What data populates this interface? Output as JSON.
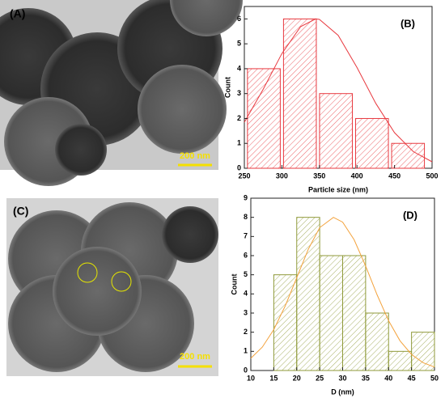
{
  "images": [
    {
      "label": "(A)",
      "scale_label": "200 nm"
    },
    {
      "label": "(C)",
      "scale_label": "200 nm"
    }
  ],
  "chart_data": [
    {
      "type": "histogram",
      "annotation": "(B)",
      "x_label": "Particle size (nm)",
      "y_label": "Count",
      "bins": [
        252,
        300,
        348,
        396,
        444,
        492
      ],
      "values": [
        4,
        6,
        3,
        2,
        1
      ],
      "color": "#e8393f",
      "xlim": [
        250,
        500
      ],
      "xticks": [
        250,
        300,
        350,
        400,
        450,
        500
      ],
      "ylim": [
        0,
        6.5
      ],
      "yticks": [
        0,
        1,
        2,
        3,
        4,
        5,
        6
      ],
      "fit": {
        "color": "#e8393f",
        "x": [
          250,
          275,
          300,
          325,
          345,
          350,
          375,
          400,
          425,
          450,
          475,
          500
        ],
        "values": [
          1.85,
          3.17,
          4.61,
          5.69,
          6,
          5.98,
          5.34,
          4.05,
          2.61,
          1.43,
          0.67,
          0.26
        ]
      }
    },
    {
      "type": "histogram",
      "annotation": "(D)",
      "x_label": "D (nm)",
      "y_label": "Count",
      "bins": [
        15,
        20,
        25,
        30,
        35,
        40,
        45,
        50
      ],
      "values": [
        5,
        8,
        6,
        6,
        3,
        1,
        2
      ],
      "color": "#8f9a3a",
      "xlim": [
        10,
        50
      ],
      "xticks": [
        10,
        15,
        20,
        25,
        30,
        35,
        40,
        45,
        50
      ],
      "ylim": [
        0,
        9
      ],
      "yticks": [
        0,
        1,
        2,
        3,
        4,
        5,
        6,
        7,
        8,
        9
      ],
      "fit": {
        "color": "#f3a23c",
        "x": [
          10,
          12.5,
          15,
          17.5,
          20,
          22.5,
          25,
          28,
          30,
          32.5,
          35,
          37.5,
          40,
          42.5,
          45,
          47.5,
          50
        ],
        "values": [
          0.64,
          1.22,
          2.14,
          3.38,
          4.85,
          6.32,
          7.46,
          8,
          7.75,
          6.83,
          5.46,
          3.95,
          2.6,
          1.55,
          0.84,
          0.41,
          0.18
        ]
      }
    }
  ]
}
